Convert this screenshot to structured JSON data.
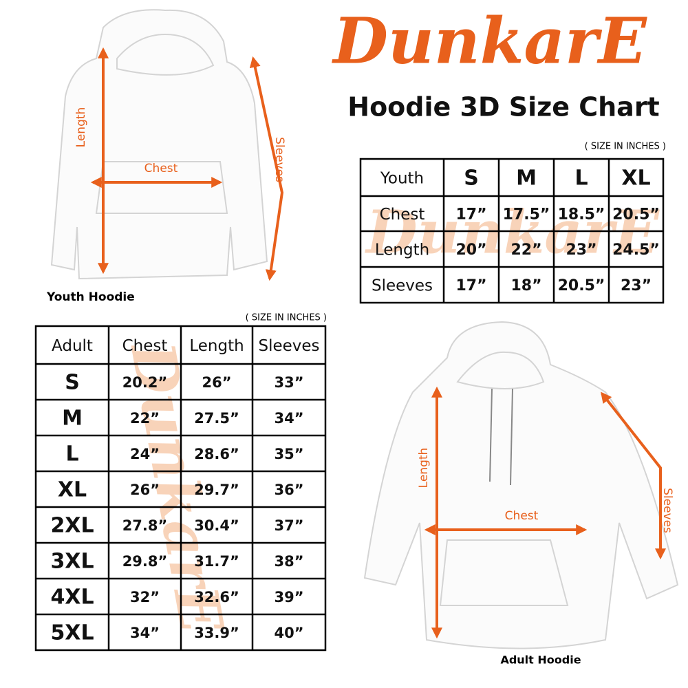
{
  "brand": "DunkarE",
  "title": "Hoodie 3D Size Chart",
  "youth_figure": {
    "caption": "Youth Hoodie",
    "labels": [
      "Length",
      "Chest",
      "Sleeves"
    ]
  },
  "youth_table": {
    "note": "( SIZE IN INCHES )",
    "header": [
      "Youth",
      "S",
      "M",
      "L",
      "XL"
    ],
    "rows": [
      [
        "Chest",
        "17”",
        "17.5”",
        "18.5”",
        "20.5”"
      ],
      [
        "Length",
        "20”",
        "22”",
        "23”",
        "24.5”"
      ],
      [
        "Sleeves",
        "17”",
        "18”",
        "20.5”",
        "23”"
      ]
    ]
  },
  "adult_table": {
    "note": "( SIZE IN INCHES )",
    "header": [
      "Adult",
      "Chest",
      "Length",
      "Sleeves"
    ],
    "rows": [
      [
        "S",
        "20.2”",
        "26”",
        "33”"
      ],
      [
        "M",
        "22”",
        "27.5”",
        "34”"
      ],
      [
        "L",
        "24”",
        "28.6”",
        "35”"
      ],
      [
        "XL",
        "26”",
        "29.7”",
        "36”"
      ],
      [
        "2XL",
        "27.8”",
        "30.4”",
        "37”"
      ],
      [
        "3XL",
        "29.8”",
        "31.7”",
        "38”"
      ],
      [
        "4XL",
        "32”",
        "32.6”",
        "39”"
      ],
      [
        "5XL",
        "34”",
        "33.9”",
        "40”"
      ]
    ]
  },
  "adult_figure": {
    "caption": "Adult Hoodie",
    "labels": [
      "Length",
      "Chest",
      "Sleeves"
    ]
  }
}
